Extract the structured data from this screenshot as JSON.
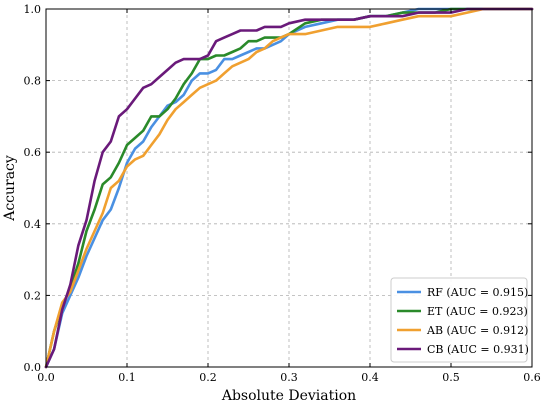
{
  "chart_data": {
    "type": "line",
    "xlabel": "Absolute Deviation",
    "ylabel": "Accuracy",
    "xlim": [
      0.0,
      0.6
    ],
    "ylim": [
      0.0,
      1.0
    ],
    "x_ticks": [
      "0.0",
      "0.1",
      "0.2",
      "0.3",
      "0.4",
      "0.5",
      "0.6"
    ],
    "y_ticks": [
      "0.0",
      "0.2",
      "0.4",
      "0.6",
      "0.8",
      "1.0"
    ],
    "grid": true,
    "legend_position": "bottom-right",
    "series": [
      {
        "name": "RF (AUC = 0.915)",
        "color": "#4a90e2",
        "x": [
          0.0,
          0.01,
          0.02,
          0.03,
          0.04,
          0.05,
          0.06,
          0.07,
          0.08,
          0.09,
          0.1,
          0.11,
          0.12,
          0.13,
          0.14,
          0.15,
          0.16,
          0.17,
          0.18,
          0.19,
          0.2,
          0.21,
          0.22,
          0.23,
          0.24,
          0.25,
          0.26,
          0.27,
          0.28,
          0.29,
          0.3,
          0.32,
          0.34,
          0.36,
          0.38,
          0.4,
          0.42,
          0.44,
          0.46,
          0.48,
          0.5,
          0.52,
          0.54,
          0.56,
          0.58,
          0.6
        ],
        "y": [
          0.0,
          0.05,
          0.15,
          0.2,
          0.25,
          0.31,
          0.36,
          0.41,
          0.44,
          0.5,
          0.57,
          0.61,
          0.63,
          0.67,
          0.7,
          0.73,
          0.74,
          0.76,
          0.8,
          0.82,
          0.82,
          0.83,
          0.86,
          0.86,
          0.87,
          0.88,
          0.89,
          0.89,
          0.9,
          0.91,
          0.93,
          0.95,
          0.96,
          0.97,
          0.97,
          0.98,
          0.98,
          0.99,
          1.0,
          1.0,
          1.0,
          1.0,
          1.0,
          1.0,
          1.0,
          1.0
        ]
      },
      {
        "name": "ET (AUC = 0.923)",
        "color": "#2a8a2a",
        "x": [
          0.0,
          0.01,
          0.02,
          0.03,
          0.04,
          0.05,
          0.06,
          0.07,
          0.08,
          0.09,
          0.1,
          0.11,
          0.12,
          0.13,
          0.14,
          0.15,
          0.16,
          0.17,
          0.18,
          0.19,
          0.2,
          0.21,
          0.22,
          0.23,
          0.24,
          0.25,
          0.26,
          0.27,
          0.28,
          0.29,
          0.3,
          0.32,
          0.34,
          0.36,
          0.38,
          0.4,
          0.42,
          0.44,
          0.46,
          0.48,
          0.5,
          0.52,
          0.54,
          0.56,
          0.58,
          0.6
        ],
        "y": [
          0.0,
          0.1,
          0.17,
          0.22,
          0.29,
          0.38,
          0.44,
          0.51,
          0.53,
          0.57,
          0.62,
          0.64,
          0.66,
          0.7,
          0.7,
          0.72,
          0.75,
          0.79,
          0.82,
          0.86,
          0.86,
          0.87,
          0.87,
          0.88,
          0.89,
          0.91,
          0.91,
          0.92,
          0.92,
          0.92,
          0.93,
          0.96,
          0.97,
          0.97,
          0.97,
          0.98,
          0.98,
          0.99,
          0.99,
          0.99,
          1.0,
          1.0,
          1.0,
          1.0,
          1.0,
          1.0
        ]
      },
      {
        "name": "AB (AUC = 0.912)",
        "color": "#f0a030",
        "x": [
          0.0,
          0.01,
          0.02,
          0.03,
          0.04,
          0.05,
          0.06,
          0.07,
          0.08,
          0.09,
          0.1,
          0.11,
          0.12,
          0.13,
          0.14,
          0.15,
          0.16,
          0.17,
          0.18,
          0.19,
          0.2,
          0.21,
          0.22,
          0.23,
          0.24,
          0.25,
          0.26,
          0.27,
          0.28,
          0.29,
          0.3,
          0.32,
          0.34,
          0.36,
          0.38,
          0.4,
          0.42,
          0.44,
          0.46,
          0.48,
          0.5,
          0.52,
          0.54,
          0.56,
          0.58,
          0.6
        ],
        "y": [
          0.0,
          0.1,
          0.18,
          0.21,
          0.27,
          0.33,
          0.38,
          0.43,
          0.5,
          0.52,
          0.56,
          0.58,
          0.59,
          0.62,
          0.65,
          0.69,
          0.72,
          0.74,
          0.76,
          0.78,
          0.79,
          0.8,
          0.82,
          0.84,
          0.85,
          0.86,
          0.88,
          0.89,
          0.91,
          0.92,
          0.93,
          0.93,
          0.94,
          0.95,
          0.95,
          0.95,
          0.96,
          0.97,
          0.98,
          0.98,
          0.98,
          0.99,
          1.0,
          1.0,
          1.0,
          1.0
        ]
      },
      {
        "name": "CB (AUC = 0.931)",
        "color": "#6a1a7a",
        "x": [
          0.0,
          0.01,
          0.02,
          0.03,
          0.04,
          0.05,
          0.06,
          0.07,
          0.08,
          0.09,
          0.1,
          0.11,
          0.12,
          0.13,
          0.14,
          0.15,
          0.16,
          0.17,
          0.18,
          0.19,
          0.2,
          0.21,
          0.22,
          0.23,
          0.24,
          0.25,
          0.26,
          0.27,
          0.28,
          0.29,
          0.3,
          0.32,
          0.34,
          0.36,
          0.38,
          0.4,
          0.42,
          0.44,
          0.46,
          0.48,
          0.5,
          0.52,
          0.54,
          0.56,
          0.58,
          0.6
        ],
        "y": [
          0.0,
          0.05,
          0.16,
          0.23,
          0.34,
          0.41,
          0.52,
          0.6,
          0.63,
          0.7,
          0.72,
          0.75,
          0.78,
          0.79,
          0.81,
          0.83,
          0.85,
          0.86,
          0.86,
          0.86,
          0.87,
          0.91,
          0.92,
          0.93,
          0.94,
          0.94,
          0.94,
          0.95,
          0.95,
          0.95,
          0.96,
          0.97,
          0.97,
          0.97,
          0.97,
          0.98,
          0.98,
          0.98,
          0.99,
          0.99,
          0.99,
          1.0,
          1.0,
          1.0,
          1.0,
          1.0
        ]
      }
    ]
  }
}
